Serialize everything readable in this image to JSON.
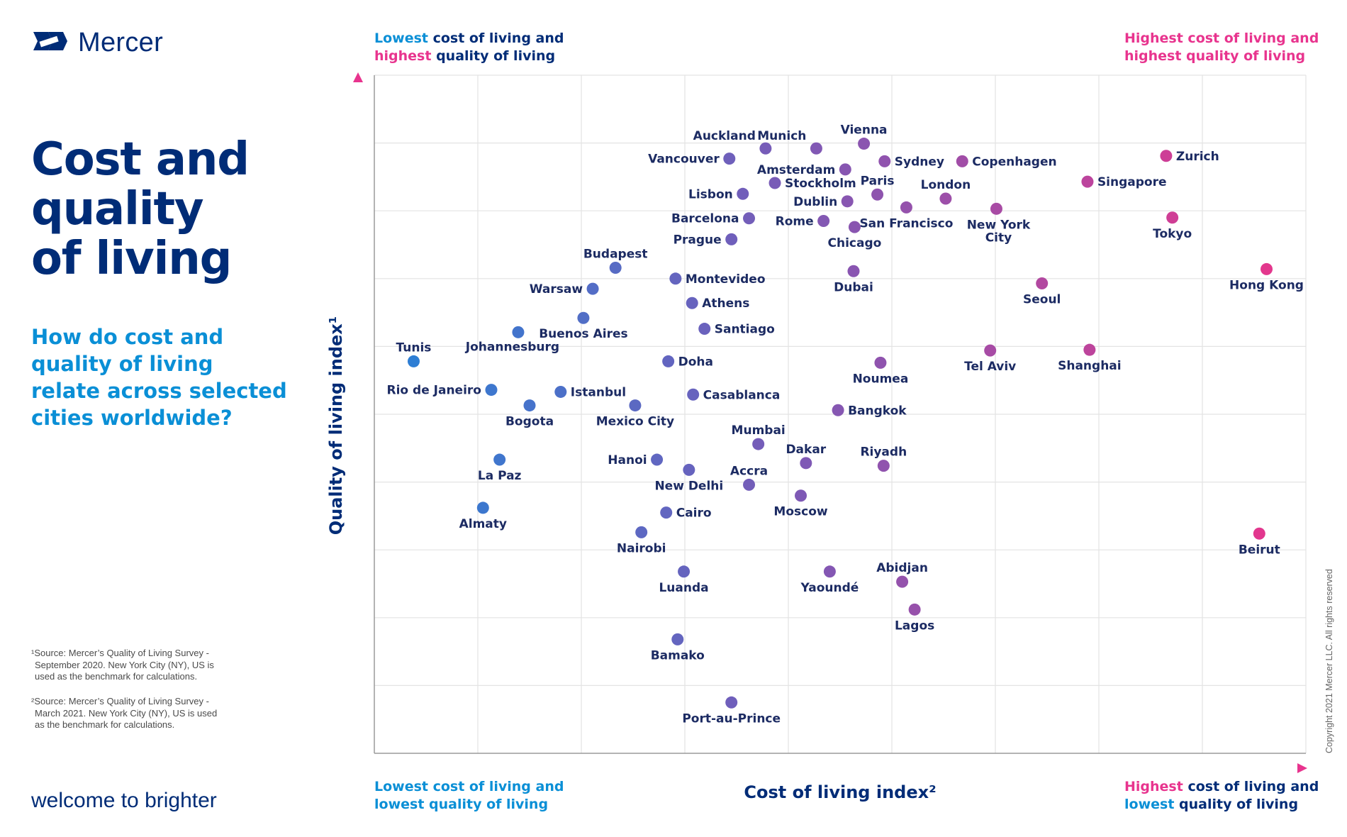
{
  "brand": {
    "name": "Mercer",
    "tagline": "welcome to brighter",
    "logo_icon": "mercer-logo-icon"
  },
  "title_lines": [
    "Cost and",
    "quality",
    "of living"
  ],
  "subtitle_lines": [
    "How do cost and",
    "quality of living",
    "relate across selected",
    "cities worldwide?"
  ],
  "footnotes": [
    [
      "¹Source: Mercer’s Quality of Living Survey -",
      "September 2020. New York City (NY), US is",
      "used as the benchmark for calculations."
    ],
    [
      "²Source: Mercer’s Quality of Living Survey -",
      "March 2021. New York City (NY), US is used",
      "as the benchmark for calculations."
    ]
  ],
  "corners": {
    "top_left": {
      "l1a": "Lowest",
      "l1b": " cost of living and",
      "l2a": "highest",
      "l2b": " quality of living"
    },
    "top_right": {
      "l1": "Highest cost of living and",
      "l2": "highest quality of living"
    },
    "bottom_left": {
      "l1": "Lowest cost of living and",
      "l2": "lowest quality of living"
    },
    "bottom_right": {
      "l1a": "Highest",
      "l1b": " cost of living and",
      "l2a": "lowest",
      "l2b": " quality of living"
    }
  },
  "copyright": "Copyright 2021 Mercer LLC. All rights reserved",
  "colors": {
    "navy": "#002c77",
    "blue": "#0a8fd6",
    "pink": "#e8348e",
    "grid": "#e3e3e3",
    "axis": "#9a9a9a"
  },
  "chart_data": {
    "type": "scatter",
    "xlabel": "Cost of living index²",
    "ylabel": "Quality of living index¹",
    "x_scale": "relative (no tick labels)",
    "y_scale": "relative (no tick labels)",
    "xlim": [
      0,
      900
    ],
    "ylim": [
      0,
      1000
    ],
    "grid": true,
    "point_color_scale": "blue (low cost) to pink (high cost)",
    "points": [
      {
        "city": "Zurich",
        "x": 765,
        "y": 881,
        "lp": "right"
      },
      {
        "city": "Vienna",
        "x": 473,
        "y": 899,
        "lp": "above"
      },
      {
        "city": "Munich",
        "x": 427,
        "y": 892,
        "lp": "above-left"
      },
      {
        "city": "Auckland",
        "x": 378,
        "y": 892,
        "lp": "above-left"
      },
      {
        "city": "Vancouver",
        "x": 343,
        "y": 877,
        "lp": "left"
      },
      {
        "city": "Sydney",
        "x": 493,
        "y": 873,
        "lp": "right"
      },
      {
        "city": "Copenhagen",
        "x": 568,
        "y": 873,
        "lp": "right"
      },
      {
        "city": "Amsterdam",
        "x": 455,
        "y": 861,
        "lp": "left"
      },
      {
        "city": "Stockholm",
        "x": 387,
        "y": 841,
        "lp": "right"
      },
      {
        "city": "Singapore",
        "x": 689,
        "y": 843,
        "lp": "right"
      },
      {
        "city": "Paris",
        "x": 486,
        "y": 824,
        "lp": "above"
      },
      {
        "city": "London",
        "x": 552,
        "y": 818,
        "lp": "above"
      },
      {
        "city": "Lisbon",
        "x": 356,
        "y": 825,
        "lp": "left"
      },
      {
        "city": "Dublin",
        "x": 457,
        "y": 814,
        "lp": "left"
      },
      {
        "city": "San Francisco",
        "x": 514,
        "y": 805,
        "lp": "below"
      },
      {
        "city": "New York City",
        "x": 601,
        "y": 803,
        "lp": "below2"
      },
      {
        "city": "Barcelona",
        "x": 362,
        "y": 789,
        "lp": "left"
      },
      {
        "city": "Rome",
        "x": 434,
        "y": 785,
        "lp": "left"
      },
      {
        "city": "Chicago",
        "x": 464,
        "y": 776,
        "lp": "below"
      },
      {
        "city": "Tokyo",
        "x": 771,
        "y": 790,
        "lp": "below"
      },
      {
        "city": "Prague",
        "x": 345,
        "y": 758,
        "lp": "left"
      },
      {
        "city": "Budapest",
        "x": 233,
        "y": 716,
        "lp": "above"
      },
      {
        "city": "Dubai",
        "x": 463,
        "y": 711,
        "lp": "below"
      },
      {
        "city": "Hong Kong",
        "x": 862,
        "y": 714,
        "lp": "below"
      },
      {
        "city": "Montevideo",
        "x": 291,
        "y": 700,
        "lp": "right"
      },
      {
        "city": "Seoul",
        "x": 645,
        "y": 693,
        "lp": "below"
      },
      {
        "city": "Warsaw",
        "x": 211,
        "y": 685,
        "lp": "left"
      },
      {
        "city": "Athens",
        "x": 307,
        "y": 664,
        "lp": "right"
      },
      {
        "city": "Buenos Aires",
        "x": 202,
        "y": 642,
        "lp": "below"
      },
      {
        "city": "Santiago",
        "x": 319,
        "y": 626,
        "lp": "right"
      },
      {
        "city": "Johannesburg",
        "x": 139,
        "y": 621,
        "lp": "below-left"
      },
      {
        "city": "Tel Aviv",
        "x": 595,
        "y": 594,
        "lp": "below"
      },
      {
        "city": "Shanghai",
        "x": 691,
        "y": 595,
        "lp": "below"
      },
      {
        "city": "Tunis",
        "x": 38,
        "y": 578,
        "lp": "above"
      },
      {
        "city": "Doha",
        "x": 284,
        "y": 578,
        "lp": "right"
      },
      {
        "city": "Noumea",
        "x": 489,
        "y": 576,
        "lp": "below"
      },
      {
        "city": "Rio de Janeiro",
        "x": 113,
        "y": 536,
        "lp": "left"
      },
      {
        "city": "Istanbul",
        "x": 180,
        "y": 533,
        "lp": "right"
      },
      {
        "city": "Casablanca",
        "x": 308,
        "y": 529,
        "lp": "right"
      },
      {
        "city": "Bogota",
        "x": 150,
        "y": 513,
        "lp": "below"
      },
      {
        "city": "Mexico City",
        "x": 252,
        "y": 513,
        "lp": "below"
      },
      {
        "city": "Bangkok",
        "x": 448,
        "y": 506,
        "lp": "right"
      },
      {
        "city": "Mumbai",
        "x": 371,
        "y": 456,
        "lp": "above"
      },
      {
        "city": "Hanoi",
        "x": 273,
        "y": 433,
        "lp": "left"
      },
      {
        "city": "La Paz",
        "x": 121,
        "y": 433,
        "lp": "below"
      },
      {
        "city": "Dakar",
        "x": 417,
        "y": 428,
        "lp": "above"
      },
      {
        "city": "Riyadh",
        "x": 492,
        "y": 424,
        "lp": "above"
      },
      {
        "city": "New Delhi",
        "x": 304,
        "y": 418,
        "lp": "below"
      },
      {
        "city": "Accra",
        "x": 362,
        "y": 396,
        "lp": "above"
      },
      {
        "city": "Moscow",
        "x": 412,
        "y": 380,
        "lp": "below"
      },
      {
        "city": "Almaty",
        "x": 105,
        "y": 362,
        "lp": "below"
      },
      {
        "city": "Cairo",
        "x": 282,
        "y": 355,
        "lp": "right"
      },
      {
        "city": "Nairobi",
        "x": 258,
        "y": 326,
        "lp": "below"
      },
      {
        "city": "Beirut",
        "x": 855,
        "y": 324,
        "lp": "below"
      },
      {
        "city": "Luanda",
        "x": 299,
        "y": 268,
        "lp": "below"
      },
      {
        "city": "Yaoundé",
        "x": 440,
        "y": 268,
        "lp": "below"
      },
      {
        "city": "Abidjan",
        "x": 510,
        "y": 253,
        "lp": "above"
      },
      {
        "city": "Lagos",
        "x": 522,
        "y": 212,
        "lp": "below"
      },
      {
        "city": "Bamako",
        "x": 293,
        "y": 168,
        "lp": "below"
      },
      {
        "city": "Port-au-Prince",
        "x": 345,
        "y": 75,
        "lp": "below"
      }
    ]
  }
}
